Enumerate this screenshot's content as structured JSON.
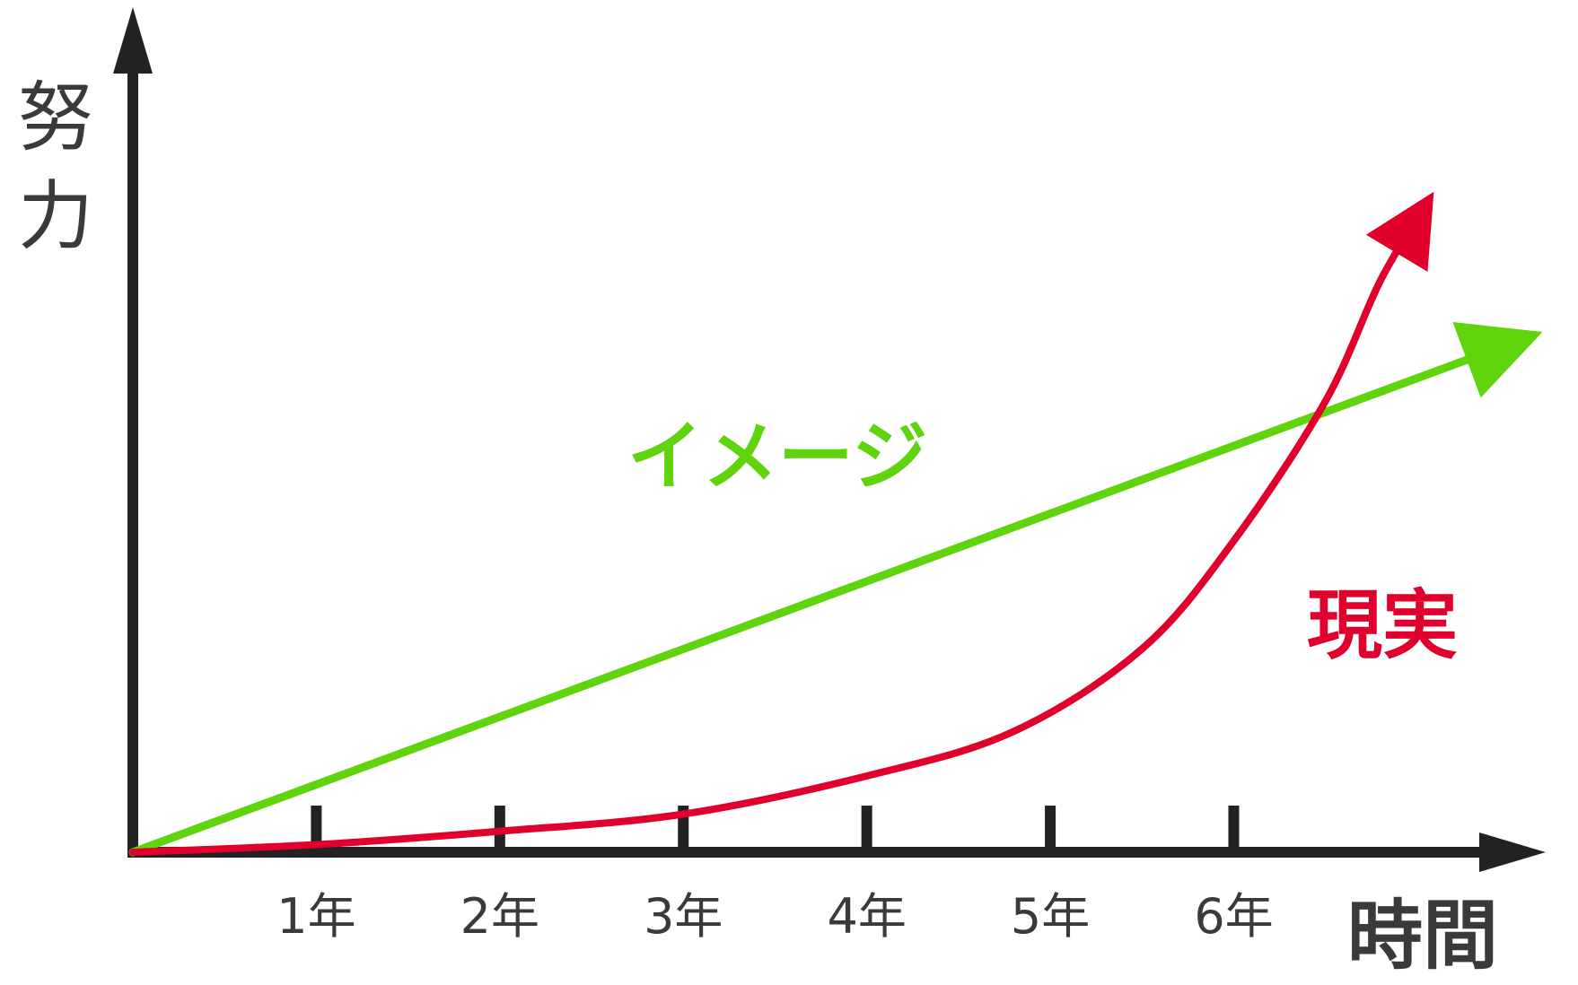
{
  "chart_data": {
    "type": "line",
    "title": "",
    "xlabel": "時間",
    "ylabel": "努力",
    "x_tick_labels": [
      "1年",
      "2年",
      "3年",
      "4年",
      "5年",
      "6年"
    ],
    "x_tick_values": [
      1,
      2,
      3,
      4,
      5,
      6
    ],
    "xlim": [
      0,
      7.7
    ],
    "ylim": [
      0,
      12
    ],
    "grid": false,
    "series": [
      {
        "name": "イメージ",
        "color": "#5fd30b",
        "x": [
          0,
          7.6
        ],
        "y": [
          0,
          8.1
        ]
      },
      {
        "name": "現実",
        "color": "#e0002b",
        "x": [
          0,
          1,
          2,
          3,
          4,
          4.8,
          5.5,
          6.0,
          6.5,
          6.8,
          7.05
        ],
        "y": [
          0,
          0.12,
          0.33,
          0.6,
          1.2,
          1.9,
          3.2,
          4.9,
          7.1,
          9.0,
          10.2
        ]
      }
    ]
  },
  "colors": {
    "axis": "#222222",
    "text": "#3a3a3a",
    "background": "#ffffff"
  }
}
